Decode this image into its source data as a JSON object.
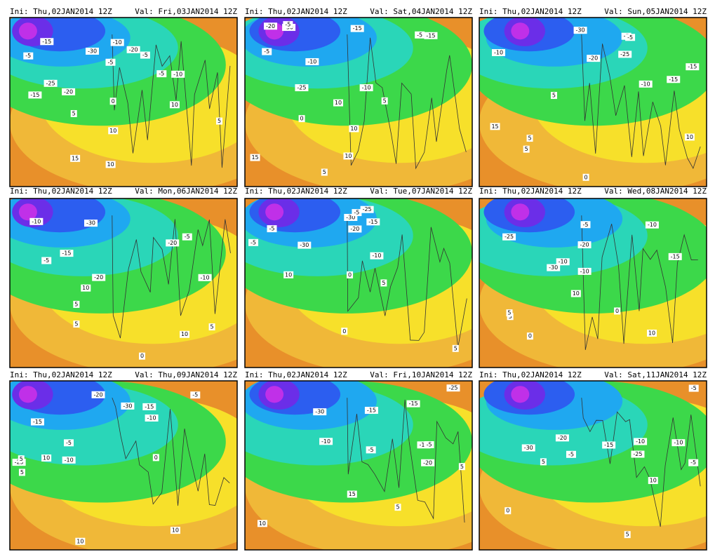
{
  "panels": [
    {
      "init": "Ini: Thu,02JAN2014 12Z",
      "valid": "Val: Fri,03JAN2014 12Z",
      "labels": [
        "-20",
        "-25",
        "-30",
        "-15",
        "-20",
        "-10",
        "-5",
        "-10",
        "-15",
        "0",
        "-5",
        "-5",
        "5",
        "-5",
        "10",
        "10",
        "5",
        "10",
        "15"
      ]
    },
    {
      "init": "Ini: Thu,02JAN2014 12Z",
      "valid": "Val: Sat,04JAN2014 12Z",
      "labels": [
        "-25",
        "-30",
        "-20",
        "-10",
        "-15",
        "-15",
        "-10",
        "-5",
        "0",
        "-5",
        "-5",
        "5",
        "10",
        "10",
        "15",
        "10",
        "5"
      ]
    },
    {
      "init": "Ini: Thu,02JAN2014 12Z",
      "valid": "Val: Sun,05JAN2014 12Z",
      "labels": [
        "-30",
        "-15",
        "-25",
        "-10",
        "-20",
        "-15",
        "-10",
        "0",
        "-5",
        "-5",
        "5",
        "5",
        "10",
        "15",
        "5"
      ]
    },
    {
      "init": "Ini: Thu,02JAN2014 12Z",
      "valid": "Val: Mon,06JAN2014 12Z",
      "labels": [
        "-30",
        "-20",
        "-15",
        "-10",
        "-20",
        "-5",
        "-10",
        "-5",
        "0",
        "5",
        "10",
        "5",
        "10",
        "5"
      ]
    },
    {
      "init": "Ini: Thu,02JAN2014 12Z",
      "valid": "Val: Tue,07JAN2014 12Z",
      "labels": [
        "-25",
        "-30",
        "-20",
        "-30",
        "-15",
        "-10",
        "-5",
        "-5",
        "0",
        "5",
        "-5",
        "0",
        "5",
        "10"
      ]
    },
    {
      "init": "Ini: Thu,02JAN2014 12Z",
      "valid": "Val: Wed,08JAN2014 12Z",
      "labels": [
        "-25",
        "-30",
        "-20",
        "-15",
        "-10",
        "-5",
        "-10",
        "0",
        "-10",
        "5",
        "10",
        "10",
        "0",
        "5"
      ]
    },
    {
      "init": "Ini: Thu,02JAN2014 12Z",
      "valid": "Val: Thu,09JAN2014 12Z",
      "labels": [
        "-15",
        "-20",
        "-30",
        "-25",
        "-15",
        "-10",
        "-5",
        "-10",
        "-5",
        "10",
        "10",
        "0",
        "5",
        "10",
        "5"
      ]
    },
    {
      "init": "Ini: Thu,02JAN2014 12Z",
      "valid": "Val: Fri,10JAN2014 12Z",
      "labels": [
        "-25",
        "-30",
        "-20",
        "-15",
        "-10",
        "-5",
        "-15",
        "-10",
        "-5",
        "5",
        "10",
        "5",
        "15"
      ]
    },
    {
      "init": "Ini: Thu,02JAN2014 12Z",
      "valid": "Val: Sat,11JAN2014 12Z",
      "labels": [
        "-30",
        "-25",
        "-20",
        "-15",
        "-10",
        "-5",
        "-10",
        "-5",
        "0",
        "-5",
        "5",
        "10",
        "5"
      ]
    }
  ]
}
